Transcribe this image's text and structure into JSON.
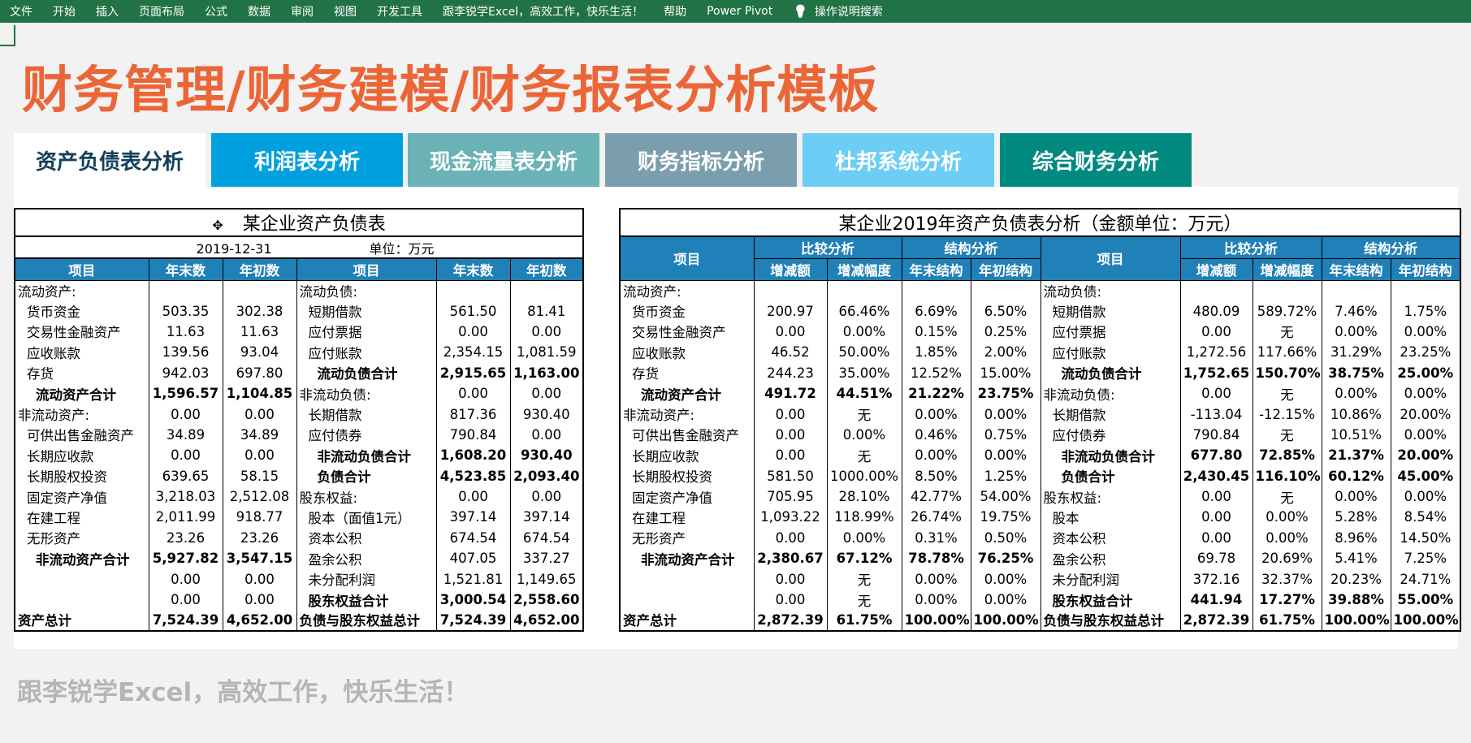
{
  "menu": [
    "文件",
    "开始",
    "插入",
    "页面布局",
    "公式",
    "数据",
    "审阅",
    "视图",
    "开发工具",
    "跟李锐学Excel，高效工作，快乐生活！",
    "帮助",
    "Power Pivot"
  ],
  "search_label": "操作说明搜索",
  "title": "财务管理/财务建模/财务报表分析模板",
  "tabs": [
    {
      "label": "资产负债表分析",
      "bg": "#ffffff",
      "fg": "#123f5a"
    },
    {
      "label": "利润表分析",
      "bg": "#00a0e0",
      "fg": "#ffffff"
    },
    {
      "label": "现金流量表分析",
      "bg": "#6ab2b5",
      "fg": "#ffffff"
    },
    {
      "label": "财务指标分析",
      "bg": "#7a9eae",
      "fg": "#ffffff"
    },
    {
      "label": "杜邦系统分析",
      "bg": "#6ccdf5",
      "fg": "#ffffff"
    },
    {
      "label": "综合财务分析",
      "bg": "#008a80",
      "fg": "#ffffff"
    }
  ],
  "balance": {
    "title": "某企业资产负债表",
    "date": "2019-12-31",
    "unit": "单位：万元",
    "headers": [
      "项目",
      "年末数",
      "年初数",
      "项目",
      "年末数",
      "年初数"
    ],
    "rows": [
      {
        "a": "流动资产:",
        "ai": 0,
        "ab": 0,
        "a1": "",
        "a2": "",
        "l": "流动负债:",
        "li": 0,
        "lb": 0,
        "l1": "",
        "l2": ""
      },
      {
        "a": "货币资金",
        "ai": 1,
        "ab": 0,
        "a1": "503.35",
        "a2": "302.38",
        "l": "短期借款",
        "li": 1,
        "lb": 0,
        "l1": "561.50",
        "l2": "81.41"
      },
      {
        "a": "交易性金融资产",
        "ai": 1,
        "ab": 0,
        "a1": "11.63",
        "a2": "11.63",
        "l": "应付票据",
        "li": 1,
        "lb": 0,
        "l1": "0.00",
        "l2": "0.00"
      },
      {
        "a": "应收账款",
        "ai": 1,
        "ab": 0,
        "a1": "139.56",
        "a2": "93.04",
        "l": "应付账款",
        "li": 1,
        "lb": 0,
        "l1": "2,354.15",
        "l2": "1,081.59"
      },
      {
        "a": "存货",
        "ai": 1,
        "ab": 0,
        "a1": "942.03",
        "a2": "697.80",
        "l": "流动负债合计",
        "li": 2,
        "lb": 1,
        "l1": "2,915.65",
        "l2": "1,163.00"
      },
      {
        "a": "流动资产合计",
        "ai": 2,
        "ab": 1,
        "a1": "1,596.57",
        "a2": "1,104.85",
        "l": "非流动负债:",
        "li": 0,
        "lb": 0,
        "l1": "0.00",
        "l2": "0.00"
      },
      {
        "a": "非流动资产:",
        "ai": 0,
        "ab": 0,
        "a1": "0.00",
        "a2": "0.00",
        "l": "长期借款",
        "li": 1,
        "lb": 0,
        "l1": "817.36",
        "l2": "930.40"
      },
      {
        "a": "可供出售金融资产",
        "ai": 1,
        "ab": 0,
        "a1": "34.89",
        "a2": "34.89",
        "l": "应付债券",
        "li": 1,
        "lb": 0,
        "l1": "790.84",
        "l2": "0.00"
      },
      {
        "a": "长期应收款",
        "ai": 1,
        "ab": 0,
        "a1": "0.00",
        "a2": "0.00",
        "l": "非流动负债合计",
        "li": 2,
        "lb": 1,
        "l1": "1,608.20",
        "l2": "930.40"
      },
      {
        "a": "长期股权投资",
        "ai": 1,
        "ab": 0,
        "a1": "639.65",
        "a2": "58.15",
        "l": "负债合计",
        "li": 2,
        "lb": 1,
        "l1": "4,523.85",
        "l2": "2,093.40"
      },
      {
        "a": "固定资产净值",
        "ai": 1,
        "ab": 0,
        "a1": "3,218.03",
        "a2": "2,512.08",
        "l": "股东权益:",
        "li": 0,
        "lb": 0,
        "l1": "0.00",
        "l2": "0.00"
      },
      {
        "a": "在建工程",
        "ai": 1,
        "ab": 0,
        "a1": "2,011.99",
        "a2": "918.77",
        "l": "股本（面值1元）",
        "li": 1,
        "lb": 0,
        "l1": "397.14",
        "l2": "397.14"
      },
      {
        "a": "无形资产",
        "ai": 1,
        "ab": 0,
        "a1": "23.26",
        "a2": "23.26",
        "l": "资本公积",
        "li": 1,
        "lb": 0,
        "l1": "674.54",
        "l2": "674.54"
      },
      {
        "a": "非流动资产合计",
        "ai": 2,
        "ab": 1,
        "a1": "5,927.82",
        "a2": "3,547.15",
        "l": "盈余公积",
        "li": 1,
        "lb": 0,
        "l1": "407.05",
        "l2": "337.27"
      },
      {
        "a": "",
        "ai": 0,
        "ab": 0,
        "a1": "0.00",
        "a2": "0.00",
        "l": "未分配利润",
        "li": 1,
        "lb": 0,
        "l1": "1,521.81",
        "l2": "1,149.65"
      },
      {
        "a": "",
        "ai": 0,
        "ab": 0,
        "a1": "0.00",
        "a2": "0.00",
        "l": "股东权益合计",
        "li": 1,
        "lb": 1,
        "l1": "3,000.54",
        "l2": "2,558.60"
      },
      {
        "a": "资产总计",
        "ai": 0,
        "ab": 1,
        "a1": "7,524.39",
        "a2": "4,652.00",
        "l": "负债与股东权益总计",
        "li": 0,
        "lb": 1,
        "l1": "7,524.39",
        "l2": "4,652.00"
      }
    ]
  },
  "analysis": {
    "title": "某企业2019年资产负债表分析（金额单位：万元）",
    "item": "项目",
    "compare": "比较分析",
    "structure": "结构分析",
    "sub": [
      "增减额",
      "增减幅度",
      "年末结构",
      "年初结构"
    ],
    "rows": [
      {
        "a": "流动资产:",
        "ai": 0,
        "ab": 0,
        "av": [
          "",
          "",
          "",
          ""
        ],
        "l": "流动负债:",
        "li": 0,
        "lb": 0,
        "lv": [
          "",
          "",
          "",
          ""
        ]
      },
      {
        "a": "货币资金",
        "ai": 1,
        "ab": 0,
        "av": [
          "200.97",
          "66.46%",
          "6.69%",
          "6.50%"
        ],
        "l": "短期借款",
        "li": 1,
        "lb": 0,
        "lv": [
          "480.09",
          "589.72%",
          "7.46%",
          "1.75%"
        ]
      },
      {
        "a": "交易性金融资产",
        "ai": 1,
        "ab": 0,
        "av": [
          "0.00",
          "0.00%",
          "0.15%",
          "0.25%"
        ],
        "l": "应付票据",
        "li": 1,
        "lb": 0,
        "lv": [
          "0.00",
          "无",
          "0.00%",
          "0.00%"
        ]
      },
      {
        "a": "应收账款",
        "ai": 1,
        "ab": 0,
        "av": [
          "46.52",
          "50.00%",
          "1.85%",
          "2.00%"
        ],
        "l": "应付账款",
        "li": 1,
        "lb": 0,
        "lv": [
          "1,272.56",
          "117.66%",
          "31.29%",
          "23.25%"
        ]
      },
      {
        "a": "存货",
        "ai": 1,
        "ab": 0,
        "av": [
          "244.23",
          "35.00%",
          "12.52%",
          "15.00%"
        ],
        "l": "流动负债合计",
        "li": 2,
        "lb": 1,
        "lv": [
          "1,752.65",
          "150.70%",
          "38.75%",
          "25.00%"
        ]
      },
      {
        "a": "流动资产合计",
        "ai": 2,
        "ab": 1,
        "av": [
          "491.72",
          "44.51%",
          "21.22%",
          "23.75%"
        ],
        "l": "非流动负债:",
        "li": 0,
        "lb": 0,
        "lv": [
          "0.00",
          "无",
          "0.00%",
          "0.00%"
        ]
      },
      {
        "a": "非流动资产:",
        "ai": 0,
        "ab": 0,
        "av": [
          "0.00",
          "无",
          "0.00%",
          "0.00%"
        ],
        "l": "长期借款",
        "li": 1,
        "lb": 0,
        "lv": [
          "-113.04",
          "-12.15%",
          "10.86%",
          "20.00%"
        ]
      },
      {
        "a": "可供出售金融资产",
        "ai": 1,
        "ab": 0,
        "av": [
          "0.00",
          "0.00%",
          "0.46%",
          "0.75%"
        ],
        "l": "应付债券",
        "li": 1,
        "lb": 0,
        "lv": [
          "790.84",
          "无",
          "10.51%",
          "0.00%"
        ]
      },
      {
        "a": "长期应收款",
        "ai": 1,
        "ab": 0,
        "av": [
          "0.00",
          "无",
          "0.00%",
          "0.00%"
        ],
        "l": "非流动负债合计",
        "li": 2,
        "lb": 1,
        "lv": [
          "677.80",
          "72.85%",
          "21.37%",
          "20.00%"
        ]
      },
      {
        "a": "长期股权投资",
        "ai": 1,
        "ab": 0,
        "av": [
          "581.50",
          "1000.00%",
          "8.50%",
          "1.25%"
        ],
        "l": "负债合计",
        "li": 2,
        "lb": 1,
        "lv": [
          "2,430.45",
          "116.10%",
          "60.12%",
          "45.00%"
        ]
      },
      {
        "a": "固定资产净值",
        "ai": 1,
        "ab": 0,
        "av": [
          "705.95",
          "28.10%",
          "42.77%",
          "54.00%"
        ],
        "l": "股东权益:",
        "li": 0,
        "lb": 0,
        "lv": [
          "0.00",
          "无",
          "0.00%",
          "0.00%"
        ]
      },
      {
        "a": "在建工程",
        "ai": 1,
        "ab": 0,
        "av": [
          "1,093.22",
          "118.99%",
          "26.74%",
          "19.75%"
        ],
        "l": "股本",
        "li": 1,
        "lb": 0,
        "lv": [
          "0.00",
          "0.00%",
          "5.28%",
          "8.54%"
        ]
      },
      {
        "a": "无形资产",
        "ai": 1,
        "ab": 0,
        "av": [
          "0.00",
          "0.00%",
          "0.31%",
          "0.50%"
        ],
        "l": "资本公积",
        "li": 1,
        "lb": 0,
        "lv": [
          "0.00",
          "0.00%",
          "8.96%",
          "14.50%"
        ]
      },
      {
        "a": "非流动资产合计",
        "ai": 2,
        "ab": 1,
        "av": [
          "2,380.67",
          "67.12%",
          "78.78%",
          "76.25%"
        ],
        "l": "盈余公积",
        "li": 1,
        "lb": 0,
        "lv": [
          "69.78",
          "20.69%",
          "5.41%",
          "7.25%"
        ]
      },
      {
        "a": "",
        "ai": 0,
        "ab": 0,
        "av": [
          "0.00",
          "无",
          "0.00%",
          "0.00%"
        ],
        "l": "未分配利润",
        "li": 1,
        "lb": 0,
        "lv": [
          "372.16",
          "32.37%",
          "20.23%",
          "24.71%"
        ]
      },
      {
        "a": "",
        "ai": 0,
        "ab": 0,
        "av": [
          "0.00",
          "无",
          "0.00%",
          "0.00%"
        ],
        "l": "股东权益合计",
        "li": 1,
        "lb": 1,
        "lv": [
          "441.94",
          "17.27%",
          "39.88%",
          "55.00%"
        ]
      },
      {
        "a": "资产总计",
        "ai": 0,
        "ab": 1,
        "av": [
          "2,872.39",
          "61.75%",
          "100.00%",
          "100.00%"
        ],
        "l": "负债与股东权益总计",
        "li": 0,
        "lb": 1,
        "lv": [
          "2,872.39",
          "61.75%",
          "100.00%",
          "100.00%"
        ]
      }
    ]
  },
  "footer": "跟李锐学Excel，高效工作，快乐生活！"
}
